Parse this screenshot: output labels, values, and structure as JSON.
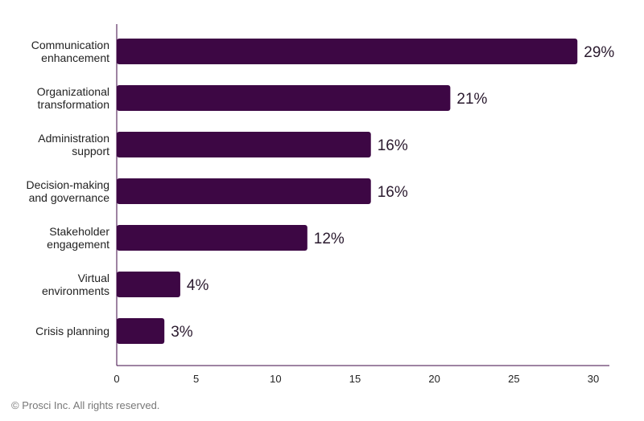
{
  "chart_data": {
    "type": "bar",
    "orientation": "horizontal",
    "categories": [
      [
        "Communication",
        "enhancement"
      ],
      [
        "Organizational",
        "transformation"
      ],
      [
        "Administration",
        "support"
      ],
      [
        "Decision-making",
        "and governance"
      ],
      [
        "Stakeholder",
        "engagement"
      ],
      [
        "Virtual",
        "environments"
      ],
      [
        "Crisis planning"
      ]
    ],
    "values": [
      29,
      21,
      16,
      16,
      12,
      4,
      3
    ],
    "data_labels": [
      "29%",
      "21%",
      "16%",
      "16%",
      "12%",
      "4%",
      "3%"
    ],
    "xlim": [
      0,
      30
    ],
    "xticks": [
      0,
      5,
      10,
      15,
      20,
      25,
      30
    ],
    "title": "",
    "xlabel": "",
    "ylabel": "",
    "grid": false,
    "bar_color": "#3d0744",
    "axis_color": "#3d0744"
  },
  "footer": {
    "copyright": "© Prosci Inc. All rights reserved."
  }
}
